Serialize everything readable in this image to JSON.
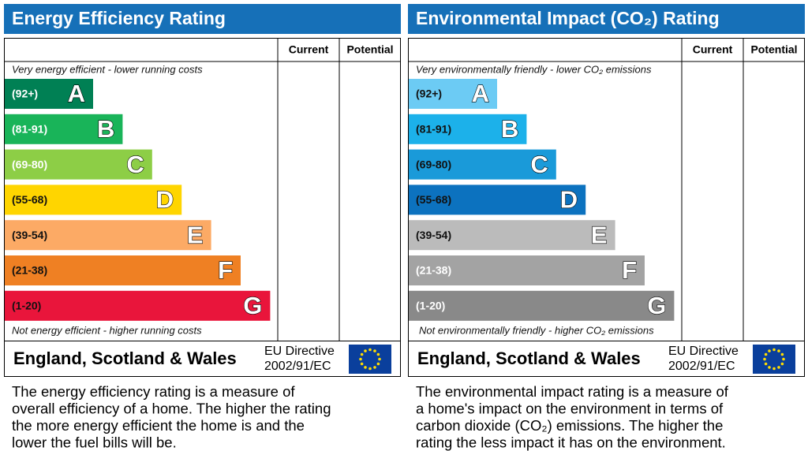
{
  "panels": [
    {
      "title": "Energy Efficiency Rating",
      "headers": [
        "Current",
        "Potential"
      ],
      "top_note": "Very energy efficient - lower running costs",
      "bottom_note": "Not energy efficient - higher running costs",
      "bands": [
        {
          "range": "(92+)",
          "letter": "A",
          "color": "#008054",
          "text": "#ffffff"
        },
        {
          "range": "(81-91)",
          "letter": "B",
          "color": "#19b459",
          "text": "#ffffff"
        },
        {
          "range": "(69-80)",
          "letter": "C",
          "color": "#8dce46",
          "text": "#ffffff"
        },
        {
          "range": "(55-68)",
          "letter": "D",
          "color": "#ffd500",
          "text": "#111111"
        },
        {
          "range": "(39-54)",
          "letter": "E",
          "color": "#fcaa65",
          "text": "#111111"
        },
        {
          "range": "(21-38)",
          "letter": "F",
          "color": "#ef8023",
          "text": "#111111"
        },
        {
          "range": "(1-20)",
          "letter": "G",
          "color": "#e9153b",
          "text": "#111111"
        }
      ],
      "region": "England, Scotland & Wales",
      "directive": [
        "EU Directive",
        "2002/91/EC"
      ],
      "description": [
        "The energy efficiency rating is a measure of",
        "overall efficiency of a home. The higher the rating",
        "the more energy efficient the home is and the",
        "lower the fuel bills will be."
      ]
    },
    {
      "title": "Environmental Impact (CO₂) Rating",
      "headers": [
        "Current",
        "Potential"
      ],
      "top_note": "Very environmentally friendly - lower CO₂ emissions",
      "bottom_note": "Not environmentally friendly - higher CO₂ emissions",
      "bands": [
        {
          "range": "(92+)",
          "letter": "A",
          "color": "#6ccbf4",
          "text": "#111111"
        },
        {
          "range": "(81-91)",
          "letter": "B",
          "color": "#1cb1ea",
          "text": "#111111"
        },
        {
          "range": "(69-80)",
          "letter": "C",
          "color": "#1a9ad9",
          "text": "#111111"
        },
        {
          "range": "(55-68)",
          "letter": "D",
          "color": "#0c72bf",
          "text": "#111111"
        },
        {
          "range": "(39-54)",
          "letter": "E",
          "color": "#bbbbbb",
          "text": "#111111"
        },
        {
          "range": "(21-38)",
          "letter": "F",
          "color": "#a3a3a3",
          "text": "#ffffff"
        },
        {
          "range": "(1-20)",
          "letter": "G",
          "color": "#898989",
          "text": "#ffffff"
        }
      ],
      "region": "England, Scotland & Wales",
      "directive": [
        "EU Directive",
        "2002/91/EC"
      ],
      "description": [
        "The environmental impact rating is a measure of",
        "a home's impact on the environment in terms of",
        "carbon dioxide (CO₂) emissions. The higher the",
        "rating the less impact it has on the environment."
      ]
    }
  ]
}
